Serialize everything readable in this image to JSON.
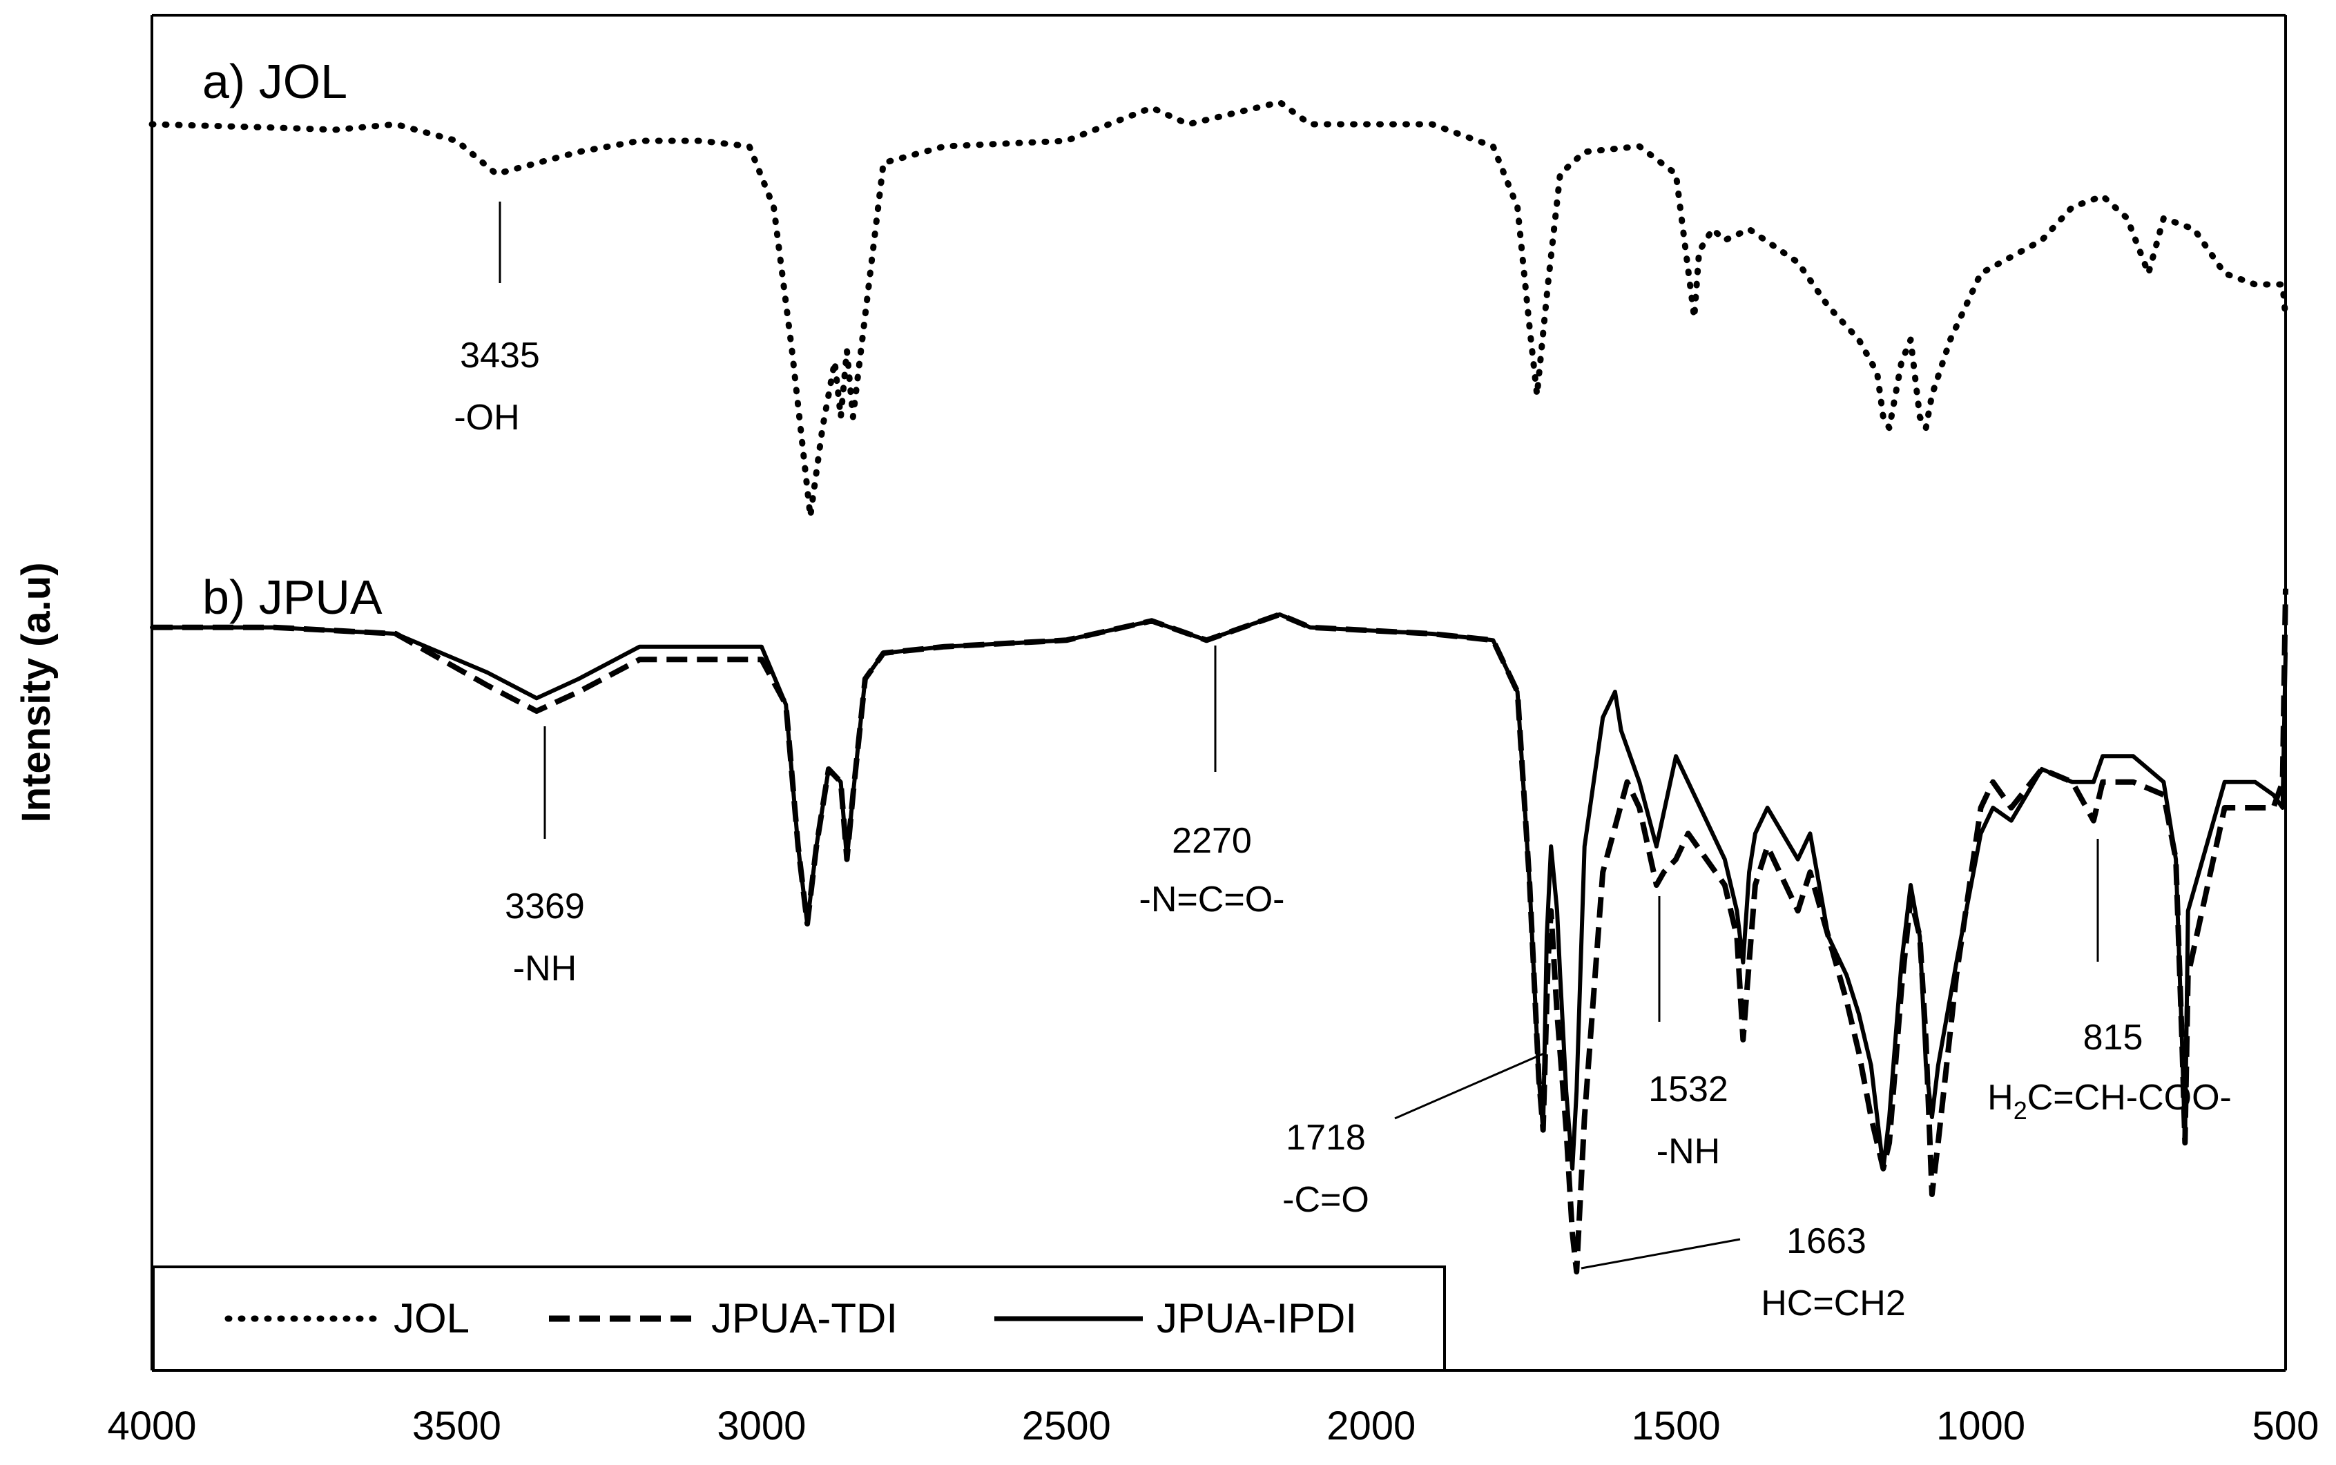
{
  "chart_data": {
    "type": "line",
    "title": "",
    "xlabel": "",
    "ylabel": "Intensity (a.u)",
    "xlim": [
      4000,
      500
    ],
    "x_reversed": true,
    "xticks": [
      4000,
      3500,
      3000,
      2500,
      2000,
      1500,
      1000,
      500
    ],
    "yticks": [],
    "grid": false,
    "legend_position": "bottom-left",
    "panel_labels": [
      {
        "id": "a",
        "text": "a) JOL"
      },
      {
        "id": "b",
        "text": "b) JPUA"
      }
    ],
    "series": [
      {
        "name": "JOL",
        "style": "dotted",
        "panel": "a",
        "x": [
          4000,
          3800,
          3700,
          3600,
          3500,
          3435,
          3300,
          3200,
          3100,
          3020,
          2980,
          2950,
          2930,
          2920,
          2900,
          2880,
          2870,
          2860,
          2850,
          2800,
          2700,
          2500,
          2360,
          2300,
          2150,
          2100,
          1900,
          1800,
          1760,
          1740,
          1728,
          1710,
          1690,
          1650,
          1560,
          1500,
          1470,
          1462,
          1440,
          1420,
          1380,
          1300,
          1250,
          1200,
          1170,
          1160,
          1150,
          1130,
          1115,
          1100,
          1090,
          1080,
          1050,
          1000,
          900,
          850,
          800,
          760,
          725,
          700,
          650,
          600,
          550,
          520,
          505,
          500
        ],
        "y": [
          93.5,
          93.2,
          93,
          93.5,
          92,
          89,
          91,
          92,
          92,
          91.5,
          86,
          73,
          63,
          58,
          66,
          72,
          67,
          73,
          67,
          90,
          91.5,
          92,
          95,
          93.5,
          95.5,
          93.5,
          93.5,
          91.5,
          86,
          75,
          69,
          79,
          89,
          91,
          91.5,
          89,
          76,
          82,
          84,
          83,
          84,
          81,
          77,
          74,
          71,
          67,
          66,
          72,
          74,
          67,
          66,
          69,
          74,
          80,
          83,
          86,
          87,
          85,
          80,
          85,
          84,
          80,
          79,
          79,
          79,
          76
        ]
      },
      {
        "name": "JPUA-TDI",
        "style": "dashed",
        "panel": "b",
        "x": [
          4000,
          3800,
          3600,
          3450,
          3369,
          3300,
          3200,
          3100,
          3000,
          2960,
          2940,
          2925,
          2910,
          2890,
          2870,
          2860,
          2850,
          2830,
          2800,
          2700,
          2500,
          2360,
          2300,
          2270,
          2150,
          2100,
          1900,
          1800,
          1760,
          1740,
          1725,
          1718,
          1710,
          1705,
          1695,
          1680,
          1670,
          1663,
          1650,
          1620,
          1580,
          1560,
          1532,
          1520,
          1500,
          1480,
          1450,
          1420,
          1400,
          1390,
          1380,
          1370,
          1350,
          1300,
          1280,
          1250,
          1220,
          1200,
          1180,
          1160,
          1150,
          1130,
          1115,
          1100,
          1090,
          1080,
          1070,
          1040,
          1000,
          980,
          950,
          900,
          850,
          815,
          800,
          750,
          700,
          680,
          670,
          665,
          660,
          600,
          550,
          520,
          505,
          500
        ],
        "y": [
          62,
          62,
          61.5,
          57.5,
          55.5,
          57,
          59.5,
          59.5,
          59.5,
          56,
          45,
          39,
          45,
          51,
          50,
          44,
          49,
          58,
          60,
          60.5,
          61,
          62.5,
          61.5,
          61,
          63,
          62,
          61.5,
          61,
          57,
          42,
          27,
          23,
          36,
          40,
          32,
          23,
          15,
          12,
          24,
          43,
          50,
          48,
          42,
          43,
          44,
          46,
          44,
          42,
          38,
          30,
          36,
          42,
          45,
          40,
          43,
          38,
          33,
          29,
          24,
          20,
          22,
          34,
          41,
          38,
          30,
          18,
          22,
          35,
          48,
          50,
          48,
          51,
          50,
          47,
          50,
          50,
          49,
          44,
          30,
          22,
          35,
          48,
          48,
          48,
          50,
          65
        ]
      },
      {
        "name": "JPUA-IPDI",
        "style": "solid",
        "panel": "b",
        "x": [
          4000,
          3800,
          3600,
          3450,
          3369,
          3300,
          3200,
          3100,
          3000,
          2960,
          2940,
          2925,
          2910,
          2890,
          2870,
          2860,
          2850,
          2830,
          2800,
          2700,
          2500,
          2360,
          2300,
          2270,
          2150,
          2100,
          1900,
          1800,
          1760,
          1740,
          1725,
          1718,
          1712,
          1705,
          1695,
          1690,
          1680,
          1670,
          1663,
          1650,
          1620,
          1600,
          1590,
          1560,
          1532,
          1500,
          1480,
          1450,
          1420,
          1400,
          1390,
          1380,
          1370,
          1350,
          1300,
          1280,
          1250,
          1220,
          1200,
          1180,
          1165,
          1160,
          1150,
          1130,
          1115,
          1100,
          1090,
          1080,
          1070,
          1040,
          1000,
          980,
          950,
          900,
          850,
          815,
          800,
          750,
          700,
          680,
          670,
          665,
          660,
          600,
          550,
          520,
          505,
          500
        ],
        "y": [
          62,
          62,
          61.5,
          58.5,
          56.5,
          58,
          60.5,
          60.5,
          60.5,
          56,
          45,
          39,
          45,
          51,
          50,
          44,
          49,
          58,
          60,
          60.5,
          61,
          62.5,
          61.5,
          61,
          63,
          62,
          61.5,
          61,
          57,
          42,
          27,
          23,
          38,
          45,
          40,
          35,
          26,
          20,
          26,
          45,
          55,
          57,
          54,
          50,
          45,
          52,
          50,
          47,
          44,
          40,
          36,
          43,
          46,
          48,
          44,
          46,
          38,
          35,
          32,
          28,
          22,
          20,
          24,
          36,
          42,
          38,
          28,
          24,
          28,
          36,
          46,
          48,
          47,
          51,
          50,
          50,
          52,
          52,
          50,
          44,
          30,
          22,
          40,
          50,
          50,
          49,
          48,
          60
        ]
      }
    ],
    "annotations": [
      {
        "series": "JOL",
        "wavenumber": 3435,
        "value_text": "3435",
        "label_text": "-OH"
      },
      {
        "series": "JPUA",
        "wavenumber": 3369,
        "value_text": "3369",
        "label_text": "-NH"
      },
      {
        "series": "JPUA",
        "wavenumber": 2270,
        "value_text": "2270",
        "label_text": "-N=C=O-"
      },
      {
        "series": "JPUA",
        "wavenumber": 1718,
        "value_text": "1718",
        "label_text": "-C=O"
      },
      {
        "series": "JPUA",
        "wavenumber": 1532,
        "value_text": "1532",
        "label_text": "-NH"
      },
      {
        "series": "JPUA",
        "wavenumber": 1663,
        "value_text": "1663",
        "label_text": "HC=CH2"
      },
      {
        "series": "JPUA",
        "wavenumber": 815,
        "value_text": "815",
        "label_text": "H2C=CH-COO-",
        "label_prefix": "H",
        "label_sub": "2",
        "label_suffix": "C=CH-COO-"
      }
    ]
  }
}
